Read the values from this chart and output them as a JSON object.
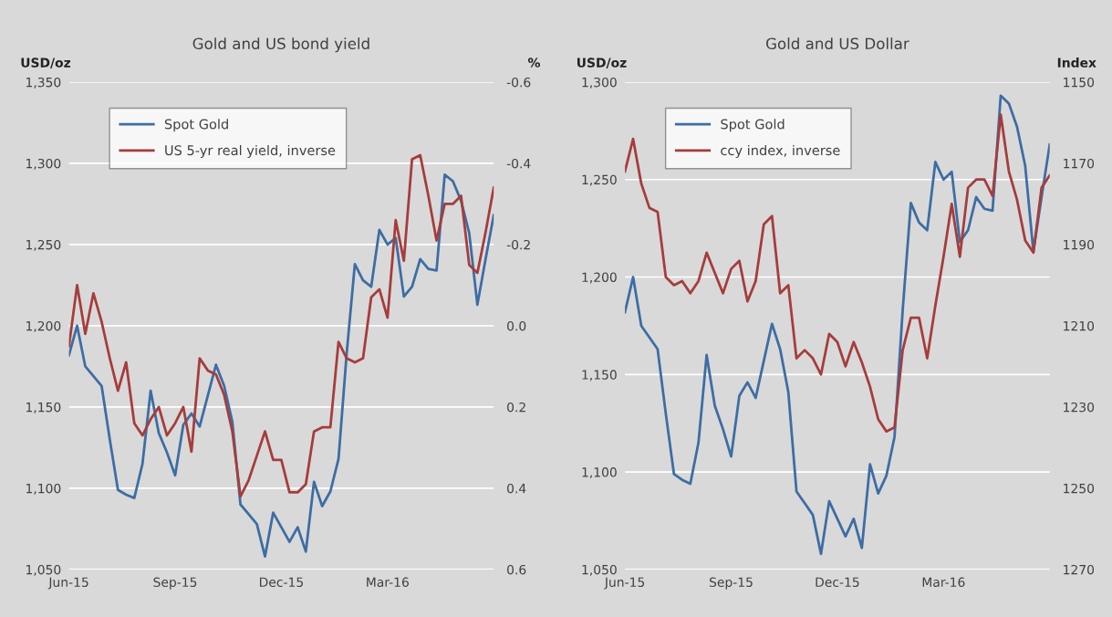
{
  "chart_data": [
    {
      "type": "line",
      "title": "Gold and US bond yield",
      "ylabel": "USD/oz",
      "y2label": "%",
      "x": [
        "2015-06-05",
        "2015-06-12",
        "2015-06-19",
        "2015-06-26",
        "2015-07-03",
        "2015-07-10",
        "2015-07-17",
        "2015-07-24",
        "2015-07-31",
        "2015-08-07",
        "2015-08-14",
        "2015-08-21",
        "2015-08-28",
        "2015-09-04",
        "2015-09-11",
        "2015-09-18",
        "2015-09-25",
        "2015-10-02",
        "2015-10-09",
        "2015-10-16",
        "2015-10-23",
        "2015-10-30",
        "2015-11-06",
        "2015-11-13",
        "2015-11-20",
        "2015-11-27",
        "2015-12-04",
        "2015-12-11",
        "2015-12-18",
        "2015-12-25",
        "2016-01-01",
        "2016-01-08",
        "2016-01-15",
        "2016-01-22",
        "2016-01-29",
        "2016-02-05",
        "2016-02-12",
        "2016-02-19",
        "2016-02-26",
        "2016-03-04",
        "2016-03-11",
        "2016-03-18",
        "2016-03-25",
        "2016-04-01",
        "2016-04-08",
        "2016-04-15",
        "2016-04-22",
        "2016-04-29",
        "2016-05-06",
        "2016-05-13",
        "2016-05-20",
        "2016-05-27",
        "2016-06-03"
      ],
      "series": [
        {
          "name": "Spot Gold",
          "color": "#3d6da4",
          "values": [
            1182,
            1200,
            1175,
            1169,
            1163,
            1130,
            1099,
            1096,
            1094,
            1115,
            1160,
            1134,
            1122,
            1108,
            1139,
            1146,
            1138,
            1157,
            1176,
            1163,
            1141,
            1090,
            1084,
            1078,
            1058,
            1085,
            1076,
            1067,
            1076,
            1061,
            1104,
            1089,
            1098,
            1118,
            1183,
            1238,
            1228,
            1224,
            1259,
            1250,
            1254,
            1218,
            1224,
            1241,
            1235,
            1234,
            1293,
            1289,
            1277,
            1257,
            1213,
            1241,
            1268
          ]
        },
        {
          "name": "US 5-yr real yield, inverse",
          "color": "#a63c3c",
          "axis": "y2",
          "values": [
            0.05,
            -0.1,
            0.02,
            -0.08,
            -0.01,
            0.08,
            0.16,
            0.09,
            0.24,
            0.27,
            0.23,
            0.2,
            0.27,
            0.24,
            0.2,
            0.31,
            0.08,
            0.11,
            0.12,
            0.17,
            0.26,
            0.42,
            0.38,
            0.32,
            0.26,
            0.33,
            0.33,
            0.41,
            0.41,
            0.39,
            0.26,
            0.25,
            0.25,
            0.04,
            0.08,
            0.09,
            0.08,
            -0.07,
            -0.09,
            -0.02,
            -0.26,
            -0.16,
            -0.41,
            -0.42,
            -0.32,
            -0.21,
            -0.3,
            -0.3,
            -0.32,
            -0.15,
            -0.13,
            -0.23,
            -0.34
          ]
        }
      ],
      "xlim": [
        "2015-06-05",
        "2016-06-03"
      ],
      "xticks": [
        {
          "value": "2015-06-05",
          "label": "Jun-15"
        },
        {
          "value": "2015-09-04",
          "label": "Sep-15"
        },
        {
          "value": "2015-12-04",
          "label": "Dec-15"
        },
        {
          "value": "2016-03-04",
          "label": "Mar-16"
        }
      ],
      "ylim": [
        1050,
        1350
      ],
      "yticks": [
        {
          "value": 1050,
          "label": "1,050"
        },
        {
          "value": 1100,
          "label": "1,100"
        },
        {
          "value": 1150,
          "label": "1,150"
        },
        {
          "value": 1200,
          "label": "1,200"
        },
        {
          "value": 1250,
          "label": "1,250"
        },
        {
          "value": 1300,
          "label": "1,300"
        },
        {
          "value": 1350,
          "label": "1,350"
        }
      ],
      "y2lim": [
        0.6,
        -0.6
      ],
      "y2ticks": [
        {
          "value": -0.6,
          "label": "-0.6"
        },
        {
          "value": -0.4,
          "label": "-0.4"
        },
        {
          "value": -0.2,
          "label": "-0.2"
        },
        {
          "value": 0,
          "label": "0.0"
        },
        {
          "value": 0.2,
          "label": "0.2"
        },
        {
          "value": 0.4,
          "label": "0.4"
        },
        {
          "value": 0.6,
          "label": "0.6"
        }
      ],
      "grid": "y",
      "legend": "top left"
    },
    {
      "type": "line",
      "title": "Gold and US Dollar",
      "ylabel": "USD/oz",
      "y2label": "Index",
      "x": [
        "2015-06-05",
        "2015-06-12",
        "2015-06-19",
        "2015-06-26",
        "2015-07-03",
        "2015-07-10",
        "2015-07-17",
        "2015-07-24",
        "2015-07-31",
        "2015-08-07",
        "2015-08-14",
        "2015-08-21",
        "2015-08-28",
        "2015-09-04",
        "2015-09-11",
        "2015-09-18",
        "2015-09-25",
        "2015-10-02",
        "2015-10-09",
        "2015-10-16",
        "2015-10-23",
        "2015-10-30",
        "2015-11-06",
        "2015-11-13",
        "2015-11-20",
        "2015-11-27",
        "2015-12-04",
        "2015-12-11",
        "2015-12-18",
        "2015-12-25",
        "2016-01-01",
        "2016-01-08",
        "2016-01-15",
        "2016-01-22",
        "2016-01-29",
        "2016-02-05",
        "2016-02-12",
        "2016-02-19",
        "2016-02-26",
        "2016-03-04",
        "2016-03-11",
        "2016-03-18",
        "2016-03-25",
        "2016-04-01",
        "2016-04-08",
        "2016-04-15",
        "2016-04-22",
        "2016-04-29",
        "2016-05-06",
        "2016-05-13",
        "2016-05-20",
        "2016-05-27",
        "2016-06-03"
      ],
      "series": [
        {
          "name": "Spot Gold",
          "color": "#3d6da4",
          "values": [
            1182,
            1200,
            1175,
            1169,
            1163,
            1130,
            1099,
            1096,
            1094,
            1115,
            1160,
            1134,
            1122,
            1108,
            1139,
            1146,
            1138,
            1157,
            1176,
            1163,
            1141,
            1090,
            1084,
            1078,
            1058,
            1085,
            1076,
            1067,
            1076,
            1061,
            1104,
            1089,
            1098,
            1118,
            1183,
            1238,
            1228,
            1224,
            1259,
            1250,
            1254,
            1218,
            1224,
            1241,
            1235,
            1234,
            1293,
            1289,
            1277,
            1257,
            1213,
            1241,
            1268
          ]
        },
        {
          "name": "ccy index, inverse",
          "color": "#a63c3c",
          "axis": "y2",
          "values": [
            1172,
            1164,
            1175,
            1181,
            1182,
            1198,
            1200,
            1199,
            1202,
            1199,
            1192,
            1197,
            1202,
            1196,
            1194,
            1204,
            1199,
            1185,
            1183,
            1202,
            1200,
            1218,
            1216,
            1218,
            1222,
            1212,
            1214,
            1220,
            1214,
            1219,
            1225,
            1233,
            1236,
            1235,
            1216,
            1208,
            1208,
            1218,
            1205,
            1193,
            1180,
            1193,
            1176,
            1174,
            1174,
            1178,
            1158,
            1172,
            1179,
            1189,
            1192,
            1176,
            1173
          ]
        }
      ],
      "xlim": [
        "2015-06-05",
        "2016-06-03"
      ],
      "xticks": [
        {
          "value": "2015-06-05",
          "label": "Jun-15"
        },
        {
          "value": "2015-09-04",
          "label": "Sep-15"
        },
        {
          "value": "2015-12-04",
          "label": "Dec-15"
        },
        {
          "value": "2016-03-04",
          "label": "Mar-16"
        }
      ],
      "ylim": [
        1050,
        1300
      ],
      "yticks": [
        {
          "value": 1050,
          "label": "1,050"
        },
        {
          "value": 1100,
          "label": "1,100"
        },
        {
          "value": 1150,
          "label": "1,150"
        },
        {
          "value": 1200,
          "label": "1,200"
        },
        {
          "value": 1250,
          "label": "1,250"
        },
        {
          "value": 1300,
          "label": "1,300"
        }
      ],
      "y2lim": [
        1270,
        1150
      ],
      "y2ticks": [
        1150,
        1170,
        1190,
        1210,
        1230,
        1250,
        1270
      ],
      "grid": "y",
      "legend": "top left"
    }
  ]
}
